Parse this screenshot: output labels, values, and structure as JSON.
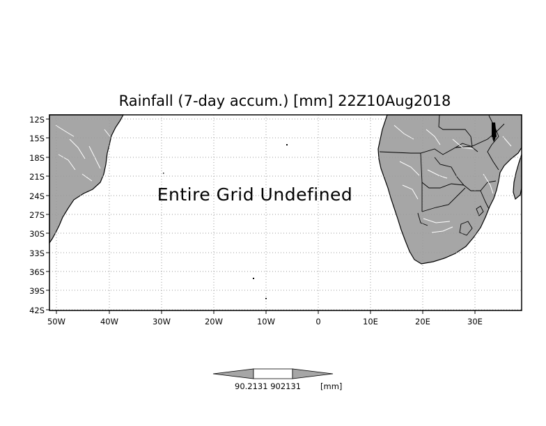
{
  "title": "Rainfall (7-day accum.) [mm] 22Z10Aug2018",
  "message": "Entire Grid Undefined",
  "lat_labels": [
    "12S",
    "15S",
    "18S",
    "21S",
    "24S",
    "27S",
    "30S",
    "33S",
    "36S",
    "39S",
    "42S"
  ],
  "lon_labels": [
    "50W",
    "40W",
    "30W",
    "20W",
    "10W",
    "0",
    "10E",
    "20E",
    "30E"
  ],
  "colorbar": {
    "value_label": "90.2131 902131",
    "unit_label": "[mm]"
  },
  "colors": {
    "land": "#a6a6a6",
    "ocean": "#ffffff",
    "grid": "#9a9a9a",
    "frame": "#000000",
    "rivers": "#ffffff"
  }
}
